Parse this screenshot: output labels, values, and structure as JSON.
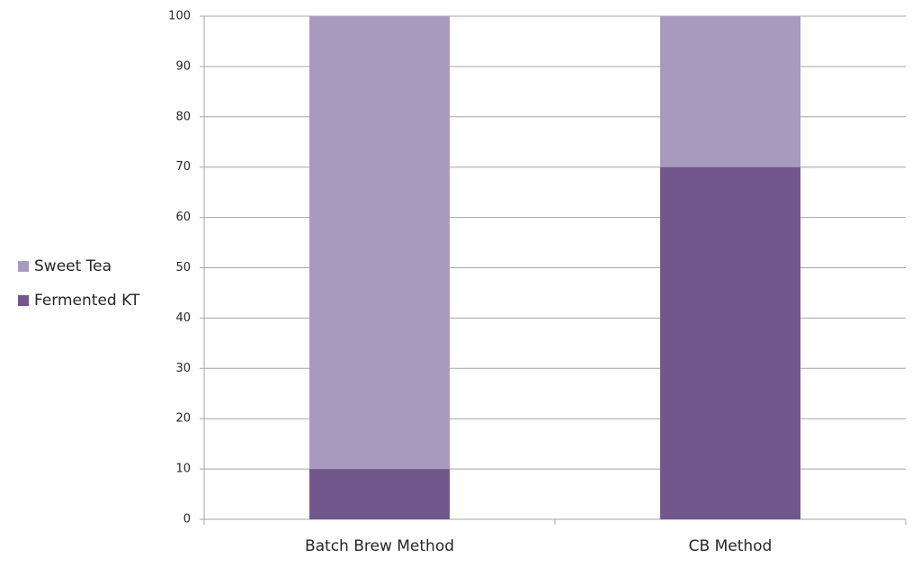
{
  "chart_data": {
    "type": "bar",
    "stacked": true,
    "categories": [
      "Batch Brew Method",
      "CB Method"
    ],
    "series": [
      {
        "name": "Fermented KT",
        "color": "#72578c",
        "values": [
          10,
          70
        ]
      },
      {
        "name": "Sweet Tea",
        "color": "#a899bf",
        "values": [
          90,
          30
        ]
      }
    ],
    "ylim": [
      0,
      100
    ],
    "yticks": [
      0,
      10,
      20,
      30,
      40,
      50,
      60,
      70,
      80,
      90,
      100
    ],
    "grid": true,
    "legend": "left"
  }
}
